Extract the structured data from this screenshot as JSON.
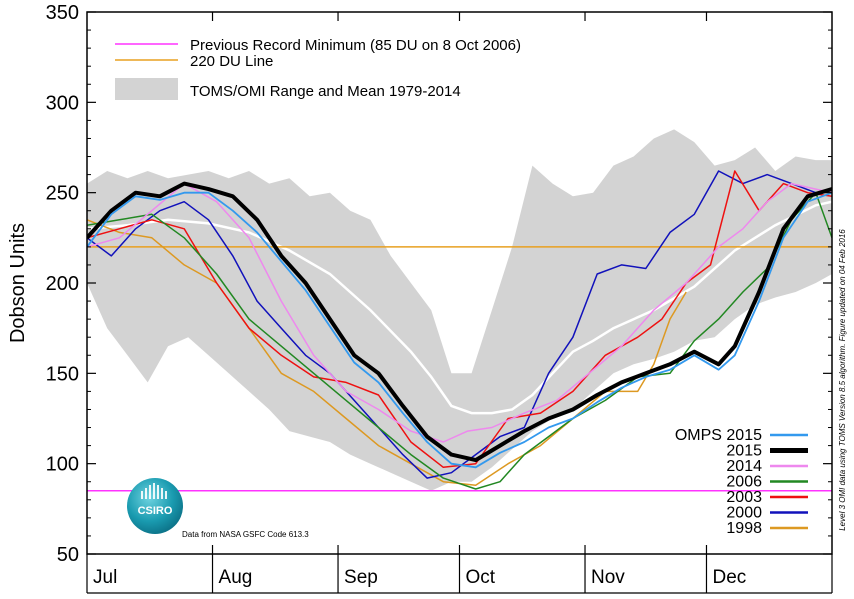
{
  "chart_data": {
    "type": "line",
    "ylabel": "Dobson Units",
    "ylim": [
      50,
      350
    ],
    "yticks": [
      50,
      100,
      150,
      200,
      250,
      300,
      350
    ],
    "xlim": [
      0,
      184
    ],
    "months": [
      {
        "label": "Jul",
        "day": 0
      },
      {
        "label": "Aug",
        "day": 31
      },
      {
        "label": "Sep",
        "day": 62
      },
      {
        "label": "Oct",
        "day": 92
      },
      {
        "label": "Nov",
        "day": 123
      },
      {
        "label": "Dec",
        "day": 153
      }
    ],
    "legend_top": {
      "record_label": "Previous Record Minimum (85 DU on 8 Oct 2006)",
      "line220_label": "220 DU Line",
      "range_label": "TOMS/OMI Range and Mean 1979-2014"
    },
    "legend_bottom": [
      "OMPS 2015",
      "2015",
      "2014",
      "2006",
      "2003",
      "2000",
      "1998"
    ],
    "record_min": 85,
    "line_220": 220,
    "colors": {
      "record": "#ff33ff",
      "line220": "#e8a020",
      "range": "#d3d3d3",
      "mean": "#ffffff",
      "omps2015": "#3399ee",
      "y2015": "#000000",
      "y2014": "#ee88ee",
      "y2006": "#228822",
      "y2003": "#ee1111",
      "y2000": "#1111bb",
      "y1998": "#dd9922"
    },
    "range": {
      "x": [
        0,
        5,
        10,
        15,
        20,
        25,
        30,
        35,
        40,
        45,
        50,
        55,
        60,
        65,
        70,
        75,
        80,
        85,
        90,
        95,
        100,
        105,
        110,
        115,
        120,
        125,
        130,
        135,
        140,
        145,
        150,
        155,
        160,
        165,
        170,
        175,
        180,
        184
      ],
      "upper": [
        255,
        262,
        258,
        262,
        258,
        260,
        262,
        258,
        262,
        255,
        258,
        248,
        250,
        240,
        235,
        215,
        200,
        185,
        150,
        150,
        185,
        220,
        265,
        255,
        248,
        250,
        265,
        270,
        280,
        285,
        278,
        265,
        268,
        275,
        262,
        270,
        268,
        268
      ],
      "lower": [
        200,
        175,
        160,
        145,
        165,
        170,
        160,
        150,
        140,
        130,
        118,
        115,
        112,
        105,
        100,
        95,
        90,
        85,
        90,
        90,
        98,
        108,
        118,
        125,
        130,
        140,
        150,
        155,
        158,
        162,
        168,
        170,
        180,
        188,
        192,
        195,
        200,
        205
      ]
    },
    "mean": {
      "x": [
        0,
        10,
        20,
        30,
        40,
        50,
        60,
        70,
        80,
        85,
        90,
        95,
        100,
        105,
        110,
        115,
        120,
        125,
        130,
        140,
        150,
        160,
        170,
        180,
        184
      ],
      "y": [
        230,
        232,
        235,
        233,
        228,
        218,
        205,
        185,
        162,
        148,
        132,
        128,
        128,
        130,
        138,
        150,
        162,
        168,
        175,
        185,
        198,
        218,
        232,
        243,
        245
      ]
    },
    "series": [
      {
        "name": "1998",
        "colorKey": "y1998",
        "width": 1.5,
        "x": [
          0,
          8,
          16,
          24,
          32,
          40,
          48,
          56,
          64,
          72,
          80,
          88,
          96,
          104,
          112,
          120,
          128,
          136,
          140,
          144,
          148
        ],
        "y": [
          235,
          228,
          225,
          210,
          200,
          175,
          150,
          140,
          125,
          110,
          100,
          90,
          88,
          100,
          110,
          125,
          140,
          140,
          155,
          180,
          195
        ]
      },
      {
        "name": "2000",
        "colorKey": "y2000",
        "width": 1.5,
        "x": [
          0,
          6,
          12,
          18,
          24,
          30,
          36,
          42,
          48,
          54,
          60,
          66,
          72,
          78,
          84,
          90,
          96,
          102,
          108,
          114,
          120,
          126,
          132,
          138,
          144,
          150,
          156,
          162,
          168,
          174,
          180,
          184
        ],
        "y": [
          225,
          215,
          230,
          240,
          245,
          235,
          215,
          190,
          175,
          160,
          150,
          135,
          120,
          105,
          92,
          95,
          105,
          115,
          120,
          150,
          170,
          205,
          210,
          208,
          228,
          238,
          262,
          255,
          260,
          255,
          250,
          252
        ]
      },
      {
        "name": "2003",
        "colorKey": "y2003",
        "width": 1.5,
        "x": [
          0,
          8,
          16,
          24,
          32,
          40,
          48,
          56,
          64,
          72,
          80,
          88,
          96,
          104,
          112,
          120,
          128,
          136,
          142,
          148,
          154,
          160,
          166,
          172,
          178,
          184
        ],
        "y": [
          225,
          230,
          235,
          230,
          200,
          175,
          160,
          148,
          145,
          138,
          112,
          98,
          100,
          125,
          128,
          140,
          160,
          170,
          180,
          200,
          210,
          262,
          240,
          255,
          250,
          248
        ]
      },
      {
        "name": "2006",
        "colorKey": "y2006",
        "width": 1.5,
        "x": [
          0,
          8,
          16,
          24,
          32,
          40,
          48,
          56,
          64,
          72,
          80,
          88,
          96,
          102,
          108,
          114,
          120,
          128,
          136,
          144,
          150,
          156,
          162,
          168,
          174,
          180,
          184
        ],
        "y": [
          232,
          235,
          238,
          225,
          205,
          180,
          165,
          150,
          135,
          120,
          105,
          92,
          86,
          90,
          105,
          115,
          125,
          135,
          148,
          150,
          168,
          180,
          195,
          208,
          235,
          250,
          225
        ]
      },
      {
        "name": "2014",
        "colorKey": "y2014",
        "width": 1.5,
        "x": [
          0,
          8,
          16,
          24,
          32,
          40,
          48,
          56,
          64,
          72,
          80,
          88,
          94,
          100,
          108,
          116,
          124,
          132,
          140,
          148,
          156,
          162,
          168,
          174,
          180,
          184
        ],
        "y": [
          220,
          225,
          240,
          255,
          245,
          225,
          190,
          160,
          140,
          130,
          118,
          112,
          118,
          120,
          128,
          135,
          150,
          165,
          185,
          200,
          220,
          230,
          245,
          255,
          252,
          250
        ]
      },
      {
        "name": "2015",
        "colorKey": "y2015",
        "width": 4,
        "x": [
          0,
          6,
          12,
          18,
          24,
          30,
          36,
          42,
          48,
          54,
          60,
          66,
          72,
          78,
          84,
          90,
          96,
          102,
          108,
          114,
          120,
          126,
          132,
          138,
          144,
          150,
          156,
          160,
          166,
          172,
          178,
          184
        ],
        "y": [
          225,
          240,
          250,
          248,
          255,
          252,
          248,
          235,
          215,
          200,
          180,
          160,
          150,
          132,
          115,
          105,
          102,
          110,
          118,
          125,
          130,
          138,
          145,
          150,
          155,
          162,
          155,
          165,
          195,
          230,
          248,
          252
        ]
      },
      {
        "name": "OMPS 2015",
        "colorKey": "omps2015",
        "width": 1.8,
        "x": [
          0,
          6,
          12,
          18,
          24,
          30,
          36,
          42,
          48,
          54,
          60,
          66,
          72,
          78,
          84,
          90,
          96,
          102,
          108,
          114,
          120,
          126,
          132,
          138,
          144,
          150,
          156,
          160,
          166,
          172,
          178,
          184
        ],
        "y": [
          220,
          238,
          248,
          246,
          250,
          250,
          240,
          228,
          212,
          196,
          176,
          156,
          145,
          128,
          112,
          100,
          98,
          106,
          112,
          120,
          125,
          134,
          142,
          148,
          152,
          160,
          152,
          160,
          190,
          225,
          245,
          250
        ]
      }
    ],
    "credits": {
      "logo_text": "CSIRO",
      "data_source": "Data from NASA GSFC Code 613.3",
      "side_note": "Level 3 OMI data using TOMS Version 8.5 algorithm. Figure updated on 04 Feb 2016"
    }
  }
}
